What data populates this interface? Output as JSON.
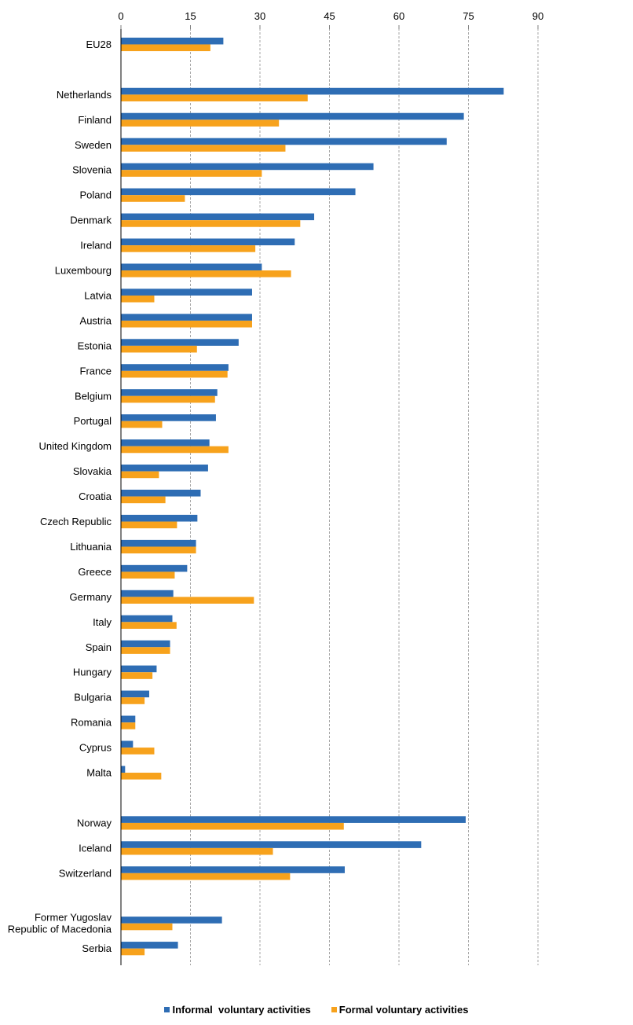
{
  "chart_data": {
    "type": "bar",
    "orientation": "horizontal",
    "x_ticks": [
      0,
      15,
      30,
      45,
      60,
      75,
      90
    ],
    "xlim": [
      0,
      90
    ],
    "grid": "vertical dashed",
    "legend_position": "bottom",
    "categories": [
      [
        "EU28"
      ],
      null,
      [
        "Netherlands"
      ],
      [
        "Finland"
      ],
      [
        "Sweden"
      ],
      [
        "Slovenia"
      ],
      [
        "Poland"
      ],
      [
        "Denmark"
      ],
      [
        "Ireland"
      ],
      [
        "Luxembourg"
      ],
      [
        "Latvia"
      ],
      [
        "Austria"
      ],
      [
        "Estonia"
      ],
      [
        "France"
      ],
      [
        "Belgium"
      ],
      [
        "Portugal"
      ],
      [
        "United Kingdom"
      ],
      [
        "Slovakia"
      ],
      [
        "Croatia"
      ],
      [
        "Czech Republic"
      ],
      [
        "Lithuania"
      ],
      [
        "Greece"
      ],
      [
        "Germany"
      ],
      [
        "Italy"
      ],
      [
        "Spain"
      ],
      [
        "Hungary"
      ],
      [
        "Bulgaria"
      ],
      [
        "Romania"
      ],
      [
        "Cyprus"
      ],
      [
        "Malta"
      ],
      null,
      [
        "Norway"
      ],
      [
        "Iceland"
      ],
      [
        "Switzerland"
      ],
      null,
      [
        "Former Yugoslav",
        "Republic of Macedonia"
      ],
      [
        "Serbia"
      ]
    ],
    "series": [
      {
        "name": "Informal  voluntary activities",
        "color": "#2e6db4",
        "values": [
          22.1,
          null,
          82.6,
          74.0,
          70.3,
          54.5,
          50.6,
          41.7,
          37.5,
          30.4,
          28.3,
          28.3,
          25.4,
          23.2,
          20.8,
          20.5,
          19.1,
          18.8,
          17.2,
          16.5,
          16.2,
          14.3,
          11.3,
          11.1,
          10.6,
          7.7,
          6.1,
          3.1,
          2.6,
          0.9,
          null,
          74.4,
          64.8,
          48.3,
          null,
          21.8,
          12.3
        ]
      },
      {
        "name": "Formal voluntary activities",
        "color": "#f7a21c",
        "values": [
          19.3,
          null,
          40.3,
          34.1,
          35.5,
          30.4,
          13.8,
          38.7,
          29.0,
          36.7,
          7.2,
          28.3,
          16.4,
          23.0,
          20.3,
          8.9,
          23.2,
          8.2,
          9.6,
          12.1,
          16.2,
          11.6,
          28.7,
          12.0,
          10.6,
          6.8,
          5.1,
          3.1,
          7.2,
          8.7,
          null,
          48.1,
          32.8,
          36.5,
          null,
          11.1,
          5.1
        ]
      }
    ]
  }
}
